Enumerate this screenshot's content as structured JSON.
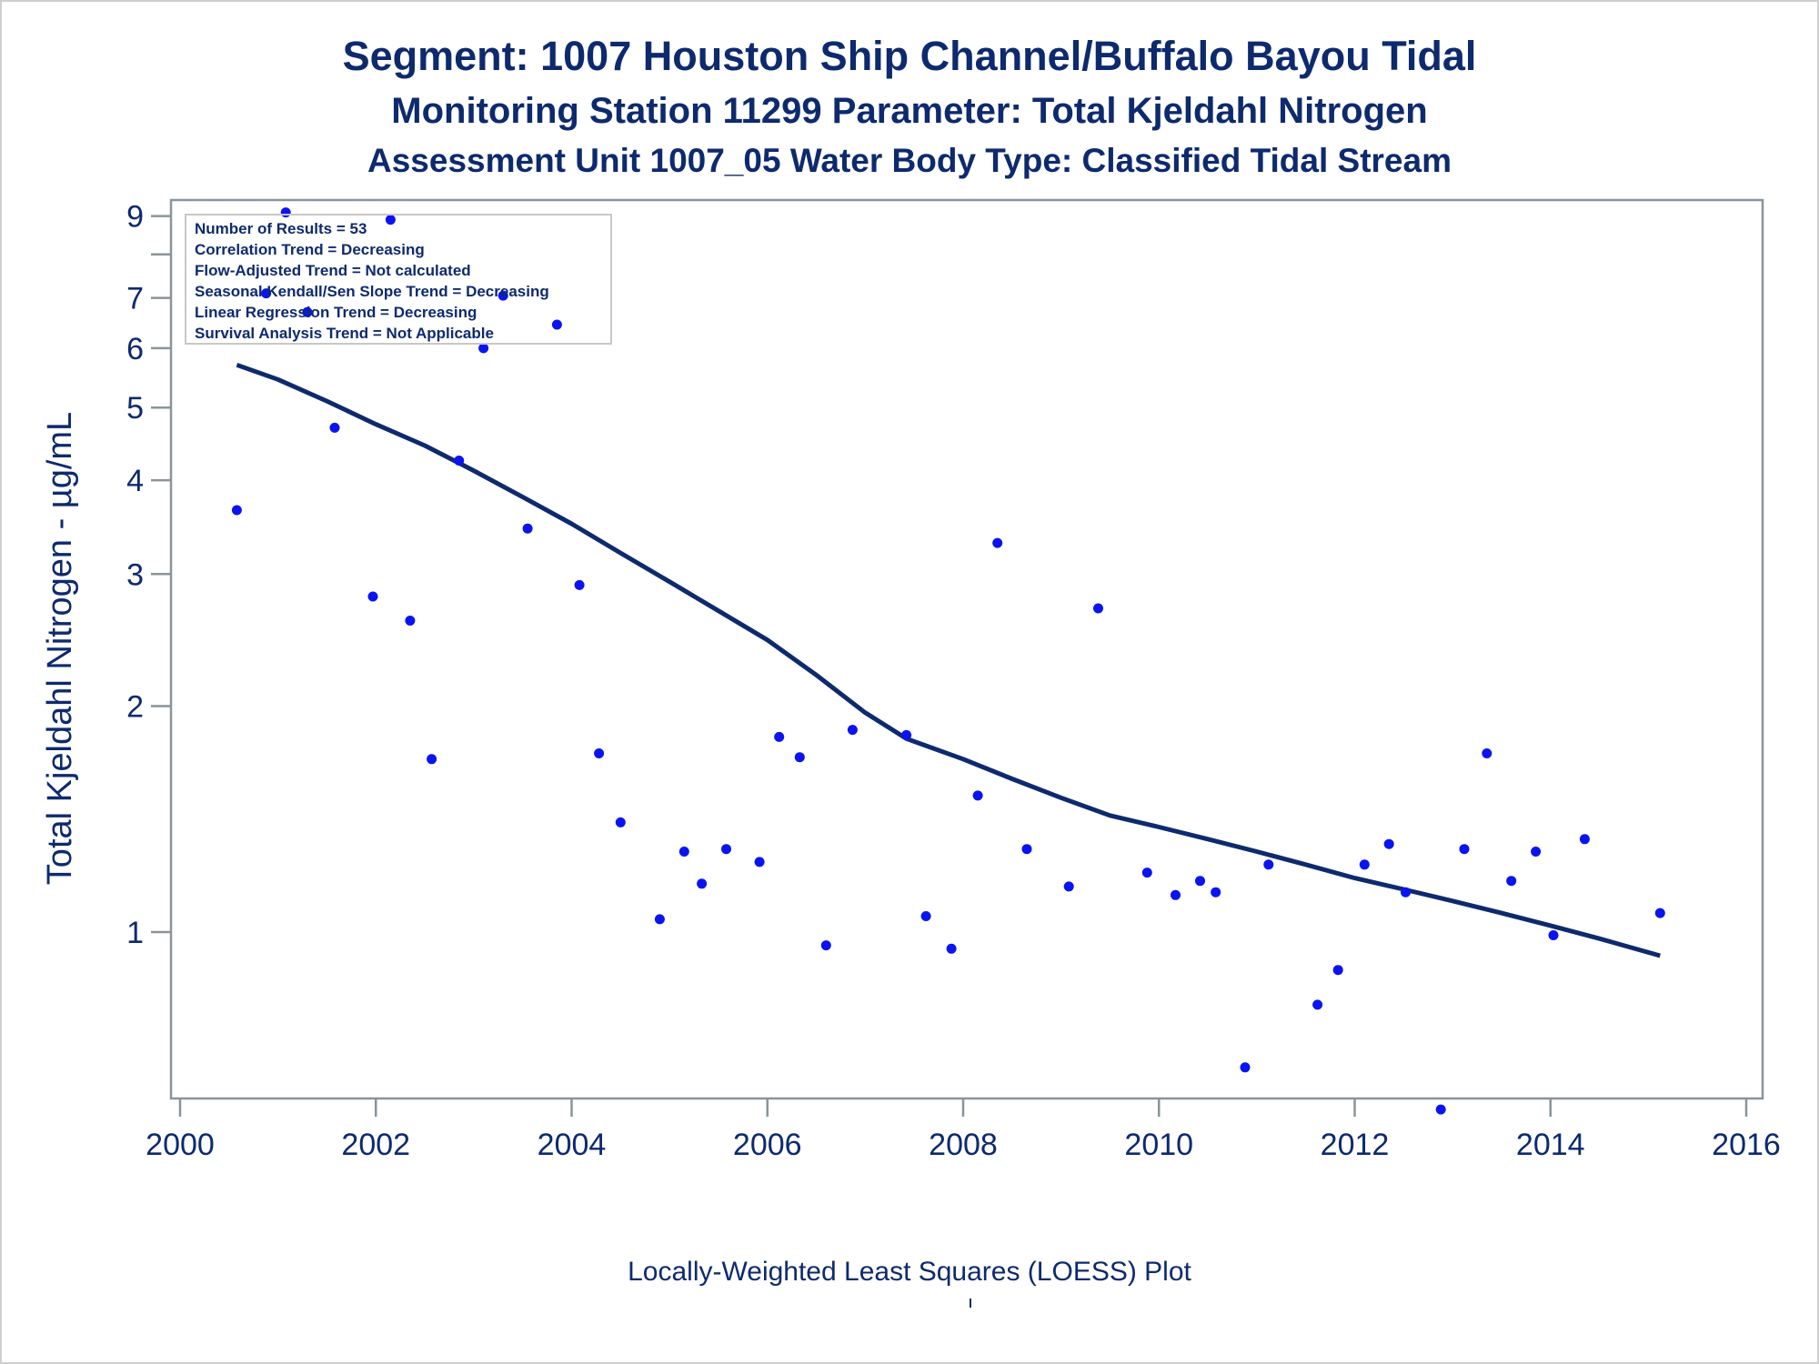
{
  "header": {
    "title": "Segment: 1007  Houston Ship Channel/Buffalo Bayou Tidal",
    "subtitle": "Monitoring Station 11299 Parameter: Total Kjeldahl Nitrogen",
    "subtitle2": "Assessment Unit 1007_05   Water Body Type: Classified Tidal Stream"
  },
  "footnote": "Locally-Weighted Least Squares (LOESS) Plot",
  "legend_box": {
    "lines": [
      "Number of Results = 53",
      "Correlation Trend = Decreasing",
      "Flow-Adjusted Trend = Not calculated",
      "Seasonal Kendall/Sen Slope Trend = Decreasing",
      "Linear Regression Trend = Decreasing",
      "Survival Analysis Trend = Not Applicable"
    ]
  },
  "colors": {
    "text": "#0e2a6e",
    "points": "#0a14f0",
    "loess_line": "#0e2a6e",
    "frame": "#8a9499"
  },
  "chart_data": {
    "type": "scatter",
    "ylabel": "Total Kjeldahl Nitrogen -  µg/mL",
    "y_scale": "log",
    "xlim": [
      2000,
      2016
    ],
    "ylim": [
      0.6,
      9.4
    ],
    "x_ticks": [
      2000,
      2002,
      2004,
      2006,
      2008,
      2010,
      2012,
      2014,
      2016
    ],
    "y_ticks": [
      1,
      2,
      3,
      4,
      5,
      6,
      7,
      9
    ],
    "y_minor_ticks": [
      8
    ],
    "grid": false,
    "points": [
      {
        "x": 2000.58,
        "y": 3.65
      },
      {
        "x": 2000.88,
        "y": 7.1
      },
      {
        "x": 2001.08,
        "y": 9.1
      },
      {
        "x": 2001.3,
        "y": 6.7
      },
      {
        "x": 2001.58,
        "y": 4.7
      },
      {
        "x": 2001.97,
        "y": 2.8
      },
      {
        "x": 2002.15,
        "y": 8.9
      },
      {
        "x": 2002.35,
        "y": 2.6
      },
      {
        "x": 2002.57,
        "y": 1.7
      },
      {
        "x": 2002.85,
        "y": 4.25
      },
      {
        "x": 2003.1,
        "y": 6.0
      },
      {
        "x": 2003.3,
        "y": 7.05
      },
      {
        "x": 2003.55,
        "y": 3.45
      },
      {
        "x": 2003.85,
        "y": 6.45
      },
      {
        "x": 2004.08,
        "y": 2.9
      },
      {
        "x": 2004.28,
        "y": 1.73
      },
      {
        "x": 2004.5,
        "y": 1.4
      },
      {
        "x": 2004.9,
        "y": 1.04
      },
      {
        "x": 2005.15,
        "y": 1.28
      },
      {
        "x": 2005.33,
        "y": 1.16
      },
      {
        "x": 2005.58,
        "y": 1.29
      },
      {
        "x": 2005.92,
        "y": 1.24
      },
      {
        "x": 2006.12,
        "y": 1.82
      },
      {
        "x": 2006.33,
        "y": 1.71
      },
      {
        "x": 2006.6,
        "y": 0.96
      },
      {
        "x": 2006.87,
        "y": 1.86
      },
      {
        "x": 2007.42,
        "y": 1.83
      },
      {
        "x": 2007.62,
        "y": 1.05
      },
      {
        "x": 2007.88,
        "y": 0.95
      },
      {
        "x": 2008.15,
        "y": 1.52
      },
      {
        "x": 2008.35,
        "y": 3.3
      },
      {
        "x": 2008.65,
        "y": 1.29
      },
      {
        "x": 2009.08,
        "y": 1.15
      },
      {
        "x": 2009.38,
        "y": 2.7
      },
      {
        "x": 2009.88,
        "y": 1.2
      },
      {
        "x": 2010.17,
        "y": 1.12
      },
      {
        "x": 2010.42,
        "y": 1.17
      },
      {
        "x": 2010.58,
        "y": 1.13
      },
      {
        "x": 2010.88,
        "y": 0.66
      },
      {
        "x": 2011.12,
        "y": 1.23
      },
      {
        "x": 2011.62,
        "y": 0.8
      },
      {
        "x": 2011.83,
        "y": 0.89
      },
      {
        "x": 2012.1,
        "y": 1.23
      },
      {
        "x": 2012.35,
        "y": 1.31
      },
      {
        "x": 2012.52,
        "y": 1.13
      },
      {
        "x": 2012.88,
        "y": 0.58
      },
      {
        "x": 2013.12,
        "y": 1.29
      },
      {
        "x": 2013.35,
        "y": 1.73
      },
      {
        "x": 2013.6,
        "y": 1.17
      },
      {
        "x": 2013.85,
        "y": 1.28
      },
      {
        "x": 2014.03,
        "y": 0.99
      },
      {
        "x": 2014.35,
        "y": 1.33
      },
      {
        "x": 2015.12,
        "y": 1.06
      }
    ],
    "loess_line": [
      {
        "x": 2000.58,
        "y": 5.7
      },
      {
        "x": 2001.0,
        "y": 5.45
      },
      {
        "x": 2001.5,
        "y": 5.1
      },
      {
        "x": 2002.0,
        "y": 4.75
      },
      {
        "x": 2002.5,
        "y": 4.45
      },
      {
        "x": 2003.0,
        "y": 4.12
      },
      {
        "x": 2003.5,
        "y": 3.8
      },
      {
        "x": 2004.0,
        "y": 3.5
      },
      {
        "x": 2004.5,
        "y": 3.2
      },
      {
        "x": 2005.0,
        "y": 2.93
      },
      {
        "x": 2005.5,
        "y": 2.68
      },
      {
        "x": 2006.0,
        "y": 2.45
      },
      {
        "x": 2006.5,
        "y": 2.2
      },
      {
        "x": 2007.0,
        "y": 1.96
      },
      {
        "x": 2007.42,
        "y": 1.81
      },
      {
        "x": 2008.0,
        "y": 1.7
      },
      {
        "x": 2008.5,
        "y": 1.6
      },
      {
        "x": 2009.0,
        "y": 1.51
      },
      {
        "x": 2009.5,
        "y": 1.43
      },
      {
        "x": 2010.0,
        "y": 1.38
      },
      {
        "x": 2010.5,
        "y": 1.33
      },
      {
        "x": 2011.0,
        "y": 1.28
      },
      {
        "x": 2011.5,
        "y": 1.23
      },
      {
        "x": 2012.0,
        "y": 1.18
      },
      {
        "x": 2012.5,
        "y": 1.14
      },
      {
        "x": 2013.0,
        "y": 1.1
      },
      {
        "x": 2013.5,
        "y": 1.06
      },
      {
        "x": 2014.0,
        "y": 1.02
      },
      {
        "x": 2014.5,
        "y": 0.98
      },
      {
        "x": 2015.12,
        "y": 0.93
      }
    ]
  }
}
